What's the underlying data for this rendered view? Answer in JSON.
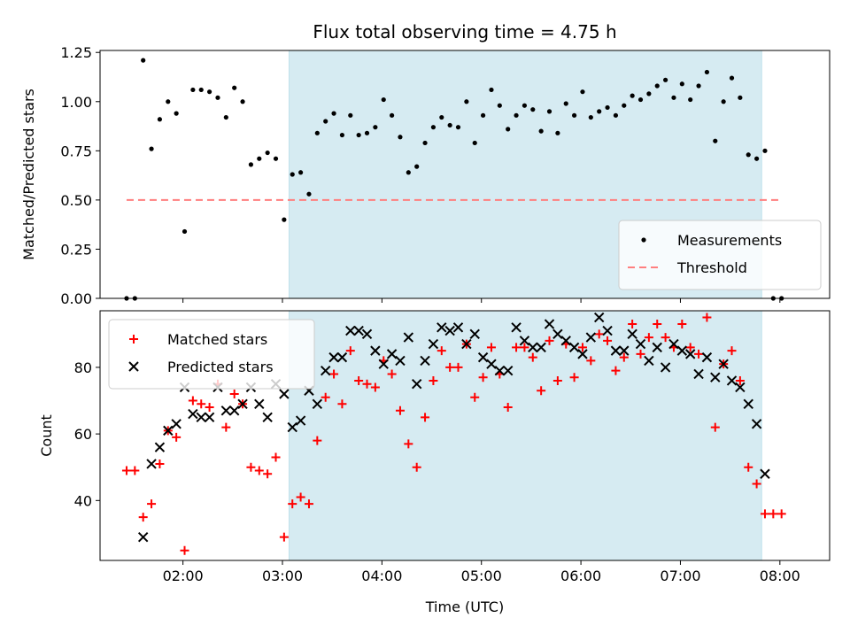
{
  "chart_data": {
    "type": "scatter",
    "title": "Flux total observing time = 4.75 h",
    "x_axis": {
      "label": "Time (UTC)",
      "range": [
        "01:10",
        "08:30"
      ],
      "ticks": [
        "02:00",
        "03:00",
        "04:00",
        "05:00",
        "06:00",
        "07:00",
        "08:00"
      ]
    },
    "highlight_window": {
      "start": "03:04",
      "end": "07:49",
      "color": "#add8e6"
    },
    "panels": [
      {
        "name": "ratio",
        "ylabel": "Matched/Predicted stars",
        "ylim": [
          0,
          1.26
        ],
        "yticks": [
          "0.00",
          "0.25",
          "0.50",
          "0.75",
          "1.00",
          "1.25"
        ],
        "legend_position": "lower-right",
        "series": [
          {
            "name": "Measurements",
            "marker": "dot",
            "color": "#000000",
            "x": [
              "01:26",
              "01:31",
              "01:36",
              "01:41",
              "01:46",
              "01:51",
              "01:56",
              "02:01",
              "02:06",
              "02:11",
              "02:16",
              "02:21",
              "02:26",
              "02:31",
              "02:36",
              "02:41",
              "02:46",
              "02:51",
              "02:56",
              "03:01",
              "03:06",
              "03:11",
              "03:16",
              "03:21",
              "03:26",
              "03:31",
              "03:36",
              "03:41",
              "03:46",
              "03:51",
              "03:56",
              "04:01",
              "04:06",
              "04:11",
              "04:16",
              "04:21",
              "04:26",
              "04:31",
              "04:36",
              "04:41",
              "04:46",
              "04:51",
              "04:56",
              "05:01",
              "05:06",
              "05:11",
              "05:16",
              "05:21",
              "05:26",
              "05:31",
              "05:36",
              "05:41",
              "05:46",
              "05:51",
              "05:56",
              "06:01",
              "06:06",
              "06:11",
              "06:16",
              "06:21",
              "06:26",
              "06:31",
              "06:36",
              "06:41",
              "06:46",
              "06:51",
              "06:56",
              "07:01",
              "07:06",
              "07:11",
              "07:16",
              "07:21",
              "07:26",
              "07:31",
              "07:36",
              "07:41",
              "07:46",
              "07:51",
              "07:56",
              "08:01"
            ],
            "y": [
              0.0,
              0.0,
              1.21,
              0.76,
              0.91,
              1.0,
              0.94,
              0.34,
              1.06,
              1.06,
              1.05,
              1.02,
              0.92,
              1.07,
              1.0,
              0.68,
              0.71,
              0.74,
              0.71,
              0.4,
              0.63,
              0.64,
              0.53,
              0.84,
              0.9,
              0.94,
              0.83,
              0.93,
              0.83,
              0.84,
              0.87,
              1.01,
              0.93,
              0.82,
              0.64,
              0.67,
              0.79,
              0.87,
              0.92,
              0.88,
              0.87,
              1.0,
              0.79,
              0.93,
              1.06,
              0.98,
              0.86,
              0.93,
              0.98,
              0.96,
              0.85,
              0.95,
              0.84,
              0.99,
              0.93,
              1.05,
              0.92,
              0.95,
              0.97,
              0.93,
              0.98,
              1.03,
              1.01,
              1.04,
              1.08,
              1.11,
              1.02,
              1.09,
              1.01,
              1.08,
              1.15,
              0.8,
              1.0,
              1.12,
              1.02,
              0.73,
              0.71,
              0.75,
              0.0,
              0.0
            ]
          },
          {
            "name": "Threshold",
            "marker": "dashed-line",
            "color": "#ff7f7f",
            "x": [
              "01:26",
              "08:01"
            ],
            "y": [
              0.5,
              0.5
            ]
          }
        ]
      },
      {
        "name": "counts",
        "ylabel": "Count",
        "ylim": [
          22,
          97
        ],
        "yticks": [
          "40",
          "60",
          "80"
        ],
        "legend_position": "top-left",
        "series": [
          {
            "name": "Matched stars",
            "marker": "plus",
            "color": "#ff0000",
            "x": [
              "01:26",
              "01:31",
              "01:36",
              "01:41",
              "01:46",
              "01:51",
              "01:56",
              "02:01",
              "02:06",
              "02:11",
              "02:16",
              "02:21",
              "02:26",
              "02:31",
              "02:36",
              "02:41",
              "02:46",
              "02:51",
              "02:56",
              "03:01",
              "03:06",
              "03:11",
              "03:16",
              "03:21",
              "03:26",
              "03:31",
              "03:36",
              "03:41",
              "03:46",
              "03:51",
              "03:56",
              "04:01",
              "04:06",
              "04:11",
              "04:16",
              "04:21",
              "04:26",
              "04:31",
              "04:36",
              "04:41",
              "04:46",
              "04:51",
              "04:56",
              "05:01",
              "05:06",
              "05:11",
              "05:16",
              "05:21",
              "05:26",
              "05:31",
              "05:36",
              "05:41",
              "05:46",
              "05:51",
              "05:56",
              "06:01",
              "06:06",
              "06:11",
              "06:16",
              "06:21",
              "06:26",
              "06:31",
              "06:36",
              "06:41",
              "06:46",
              "06:51",
              "06:56",
              "07:01",
              "07:06",
              "07:11",
              "07:16",
              "07:21",
              "07:26",
              "07:31",
              "07:36",
              "07:41",
              "07:46",
              "07:51",
              "07:56",
              "08:01"
            ],
            "y": [
              49,
              49,
              35,
              39,
              51,
              61,
              59,
              25,
              70,
              69,
              68,
              75,
              62,
              72,
              69,
              50,
              49,
              48,
              53,
              29,
              39,
              41,
              39,
              58,
              71,
              78,
              69,
              85,
              76,
              75,
              74,
              82,
              78,
              67,
              57,
              50,
              65,
              76,
              85,
              80,
              80,
              87,
              71,
              77,
              86,
              78,
              68,
              86,
              86,
              83,
              73,
              88,
              76,
              87,
              77,
              86,
              82,
              90,
              88,
              79,
              83,
              93,
              84,
              89,
              93,
              89,
              86,
              93,
              86,
              84,
              95,
              62,
              81,
              85,
              76,
              50,
              45,
              36,
              36,
              36
            ]
          },
          {
            "name": "Predicted stars",
            "marker": "cross",
            "color": "#000000",
            "x": [
              "01:36",
              "01:41",
              "01:46",
              "01:51",
              "01:56",
              "02:01",
              "02:06",
              "02:11",
              "02:16",
              "02:21",
              "02:26",
              "02:31",
              "02:36",
              "02:41",
              "02:46",
              "02:51",
              "02:56",
              "03:01",
              "03:06",
              "03:11",
              "03:16",
              "03:21",
              "03:26",
              "03:31",
              "03:36",
              "03:41",
              "03:46",
              "03:51",
              "03:56",
              "04:01",
              "04:06",
              "04:11",
              "04:16",
              "04:21",
              "04:26",
              "04:31",
              "04:36",
              "04:41",
              "04:46",
              "04:51",
              "04:56",
              "05:01",
              "05:06",
              "05:11",
              "05:16",
              "05:21",
              "05:26",
              "05:31",
              "05:36",
              "05:41",
              "05:46",
              "05:51",
              "05:56",
              "06:01",
              "06:06",
              "06:11",
              "06:16",
              "06:21",
              "06:26",
              "06:31",
              "06:36",
              "06:41",
              "06:46",
              "06:51",
              "06:56",
              "07:01",
              "07:06",
              "07:11",
              "07:16",
              "07:21",
              "07:26",
              "07:31",
              "07:36",
              "07:41",
              "07:46",
              "07:51"
            ],
            "y": [
              29,
              51,
              56,
              61,
              63,
              74,
              66,
              65,
              65,
              74,
              67,
              67,
              69,
              74,
              69,
              65,
              75,
              72,
              62,
              64,
              73,
              69,
              79,
              83,
              83,
              91,
              91,
              90,
              85,
              81,
              84,
              82,
              89,
              75,
              82,
              87,
              92,
              91,
              92,
              87,
              90,
              83,
              81,
              79,
              79,
              92,
              88,
              86,
              86,
              93,
              90,
              88,
              86,
              84,
              89,
              95,
              91,
              85,
              85,
              90,
              87,
              82,
              86,
              80,
              87,
              85,
              84,
              78,
              83,
              77,
              81,
              76,
              74,
              69,
              63,
              48
            ]
          }
        ]
      }
    ]
  }
}
